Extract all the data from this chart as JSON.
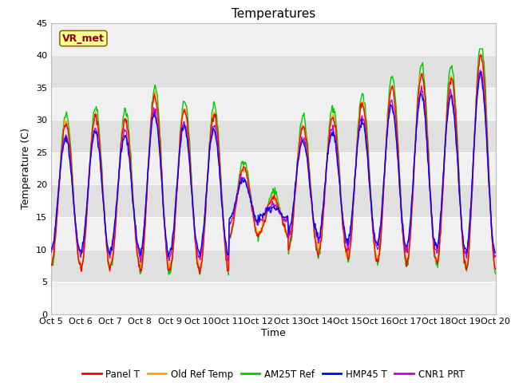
{
  "title": "Temperatures",
  "ylabel": "Temperature (C)",
  "xlabel": "Time",
  "ylim": [
    0,
    45
  ],
  "yticks": [
    0,
    5,
    10,
    15,
    20,
    25,
    30,
    35,
    40,
    45
  ],
  "xtick_labels": [
    "Oct 5",
    "Oct 6",
    "Oct 7",
    "Oct 8",
    "Oct 9",
    "Oct 10",
    "Oct 11",
    "Oct 12",
    "Oct 13",
    "Oct 14",
    "Oct 15",
    "Oct 16",
    "Oct 17",
    "Oct 18",
    "Oct 19",
    "Oct 20"
  ],
  "annotation_text": "VR_met",
  "annotation_color": "#8B0000",
  "annotation_bg": "#FFFF99",
  "line_colors": [
    "#FF0000",
    "#FFA500",
    "#00CC00",
    "#0000FF",
    "#CC00CC"
  ],
  "line_labels": [
    "Panel T",
    "Old Ref Temp",
    "AM25T Ref",
    "HMP45 T",
    "CNR1 PRT"
  ],
  "band_dark": "#E0E0E0",
  "band_light": "#F0F0F0",
  "title_fontsize": 11,
  "axis_fontsize": 9,
  "tick_fontsize": 8
}
